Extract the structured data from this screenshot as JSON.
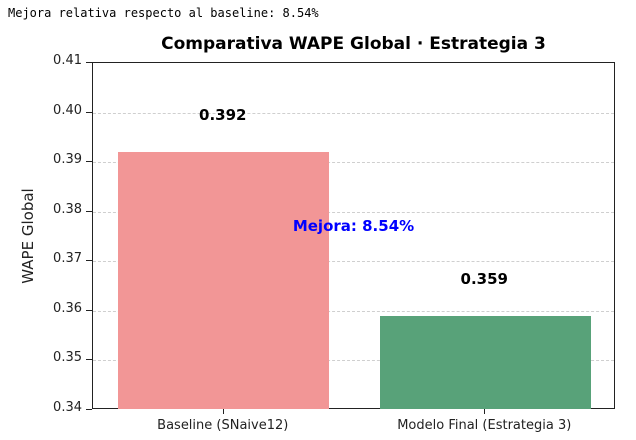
{
  "output": {
    "stdout_line": "Mejora relativa respecto al baseline: 8.54%"
  },
  "chart_data": {
    "type": "bar",
    "title": "Comparativa WAPE Global · Estrategia 3",
    "xlabel": "",
    "ylabel": "WAPE Global",
    "ylim": [
      0.34,
      0.41
    ],
    "yticks": [
      "0.34",
      "0.35",
      "0.36",
      "0.37",
      "0.38",
      "0.39",
      "0.40",
      "0.41"
    ],
    "grid": "y-dashed",
    "categories": [
      "Baseline (SNaive12)",
      "Modelo Final (Estrategia 3)"
    ],
    "values": [
      0.392,
      0.359
    ],
    "value_labels": [
      "0.392",
      "0.359"
    ],
    "colors": [
      "#f29696",
      "#58a279"
    ],
    "annotations": [
      {
        "text": "Mejora: 8.54%",
        "color": "#0000ff"
      }
    ]
  }
}
